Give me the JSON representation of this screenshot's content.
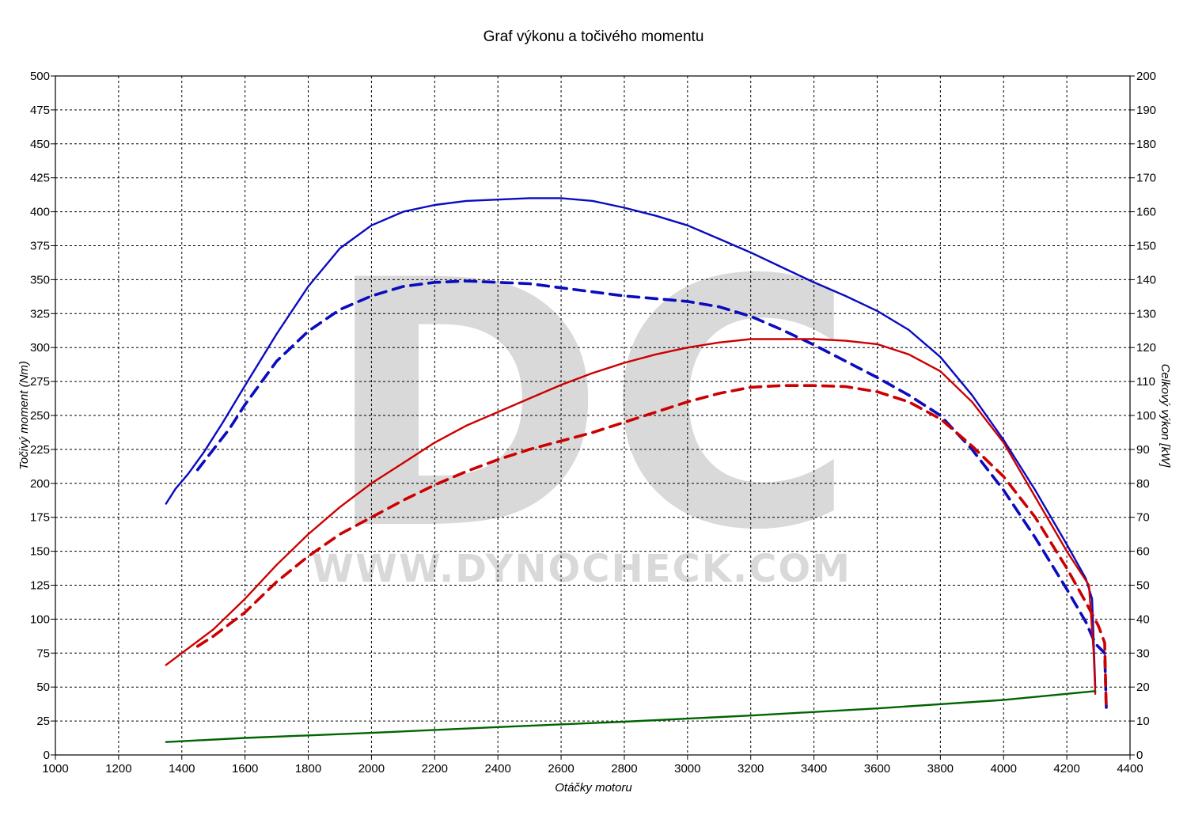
{
  "chart_data": {
    "type": "line",
    "title": "Graf výkonu a točivého momentu",
    "xlabel": "Otáčky motoru",
    "ylabel_left": "Točivý moment (Nm)",
    "ylabel_right": "Celkový výkon [kW]",
    "xlim": [
      1000,
      4400
    ],
    "x_ticks": [
      1000,
      1200,
      1400,
      1600,
      1800,
      2000,
      2200,
      2400,
      2600,
      2800,
      3000,
      3200,
      3400,
      3600,
      3800,
      4000,
      4200,
      4400
    ],
    "ylim_left": [
      0,
      500
    ],
    "left_ticks": [
      0,
      25,
      50,
      75,
      100,
      125,
      150,
      175,
      200,
      225,
      250,
      275,
      300,
      325,
      350,
      375,
      400,
      425,
      450,
      475,
      500
    ],
    "ylim_right": [
      0,
      200
    ],
    "right_ticks": [
      0,
      10,
      20,
      30,
      40,
      50,
      60,
      70,
      80,
      90,
      100,
      110,
      120,
      130,
      140,
      150,
      160,
      170,
      180,
      190,
      200
    ],
    "grid": true,
    "watermark": {
      "logo": "DC",
      "url": "WWW.DYNOCHECK.COM"
    },
    "colors": {
      "torque": "#0b0bbf",
      "power": "#cc0000",
      "loss": "#006400",
      "grid": "#000000"
    },
    "series": [
      {
        "axis": "left",
        "color": "#0b0bbf",
        "style": "solid",
        "points": [
          [
            1350,
            185
          ],
          [
            1380,
            196
          ],
          [
            1420,
            207
          ],
          [
            1470,
            223
          ],
          [
            1530,
            245
          ],
          [
            1600,
            272
          ],
          [
            1700,
            310
          ],
          [
            1800,
            345
          ],
          [
            1900,
            373
          ],
          [
            2000,
            390
          ],
          [
            2100,
            400
          ],
          [
            2200,
            405
          ],
          [
            2300,
            408
          ],
          [
            2400,
            409
          ],
          [
            2500,
            410
          ],
          [
            2600,
            410
          ],
          [
            2700,
            408
          ],
          [
            2800,
            403
          ],
          [
            2900,
            397
          ],
          [
            3000,
            390
          ],
          [
            3100,
            380
          ],
          [
            3200,
            370
          ],
          [
            3300,
            359
          ],
          [
            3400,
            348
          ],
          [
            3500,
            338
          ],
          [
            3600,
            327
          ],
          [
            3700,
            313
          ],
          [
            3800,
            293
          ],
          [
            3900,
            265
          ],
          [
            4000,
            232
          ],
          [
            4100,
            195
          ],
          [
            4200,
            155
          ],
          [
            4260,
            130
          ],
          [
            4280,
            115
          ],
          [
            4290,
            50
          ]
        ]
      },
      {
        "axis": "left",
        "color": "#0b0bbf",
        "style": "dashed",
        "points": [
          [
            1450,
            210
          ],
          [
            1500,
            225
          ],
          [
            1550,
            240
          ],
          [
            1600,
            258
          ],
          [
            1700,
            290
          ],
          [
            1800,
            312
          ],
          [
            1900,
            328
          ],
          [
            2000,
            338
          ],
          [
            2100,
            345
          ],
          [
            2200,
            348
          ],
          [
            2300,
            349
          ],
          [
            2400,
            348
          ],
          [
            2500,
            347
          ],
          [
            2600,
            344
          ],
          [
            2700,
            341
          ],
          [
            2800,
            338
          ],
          [
            2900,
            336
          ],
          [
            3000,
            334
          ],
          [
            3100,
            330
          ],
          [
            3200,
            323
          ],
          [
            3300,
            313
          ],
          [
            3400,
            302
          ],
          [
            3500,
            290
          ],
          [
            3600,
            278
          ],
          [
            3700,
            265
          ],
          [
            3800,
            250
          ],
          [
            3900,
            225
          ],
          [
            4000,
            195
          ],
          [
            4100,
            160
          ],
          [
            4200,
            122
          ],
          [
            4260,
            98
          ],
          [
            4290,
            82
          ],
          [
            4320,
            75
          ],
          [
            4325,
            35
          ]
        ]
      },
      {
        "axis": "right",
        "color": "#cc0000",
        "style": "solid",
        "points": [
          [
            1350,
            26.5
          ],
          [
            1400,
            30
          ],
          [
            1500,
            37
          ],
          [
            1600,
            46
          ],
          [
            1700,
            56
          ],
          [
            1800,
            65
          ],
          [
            1900,
            73
          ],
          [
            2000,
            80
          ],
          [
            2100,
            86
          ],
          [
            2200,
            92
          ],
          [
            2300,
            97
          ],
          [
            2400,
            101
          ],
          [
            2500,
            105
          ],
          [
            2600,
            109
          ],
          [
            2700,
            112.5
          ],
          [
            2800,
            115.5
          ],
          [
            2900,
            118
          ],
          [
            3000,
            120
          ],
          [
            3100,
            121.5
          ],
          [
            3200,
            122.5
          ],
          [
            3300,
            122.5
          ],
          [
            3400,
            122.5
          ],
          [
            3500,
            122
          ],
          [
            3600,
            121
          ],
          [
            3700,
            118
          ],
          [
            3800,
            113
          ],
          [
            3900,
            104
          ],
          [
            4000,
            92
          ],
          [
            4100,
            76
          ],
          [
            4200,
            60
          ],
          [
            4270,
            50
          ],
          [
            4285,
            30
          ],
          [
            4290,
            18
          ]
        ]
      },
      {
        "axis": "right",
        "color": "#cc0000",
        "style": "dashed",
        "points": [
          [
            1450,
            32
          ],
          [
            1500,
            35
          ],
          [
            1600,
            42
          ],
          [
            1700,
            51
          ],
          [
            1800,
            58.5
          ],
          [
            1900,
            65
          ],
          [
            2000,
            70
          ],
          [
            2100,
            75
          ],
          [
            2200,
            79.5
          ],
          [
            2300,
            83.5
          ],
          [
            2400,
            87
          ],
          [
            2500,
            90
          ],
          [
            2600,
            92.5
          ],
          [
            2700,
            95
          ],
          [
            2800,
            98
          ],
          [
            2900,
            101
          ],
          [
            3000,
            104
          ],
          [
            3100,
            106.5
          ],
          [
            3200,
            108.3
          ],
          [
            3300,
            108.8
          ],
          [
            3400,
            108.8
          ],
          [
            3500,
            108.5
          ],
          [
            3600,
            107
          ],
          [
            3700,
            104
          ],
          [
            3800,
            99
          ],
          [
            3900,
            91
          ],
          [
            4000,
            82
          ],
          [
            4100,
            70
          ],
          [
            4200,
            55
          ],
          [
            4260,
            45
          ],
          [
            4300,
            38
          ],
          [
            4320,
            33
          ],
          [
            4325,
            13
          ]
        ]
      },
      {
        "axis": "right",
        "color": "#006400",
        "style": "solid",
        "points": [
          [
            1350,
            3.8
          ],
          [
            1600,
            5
          ],
          [
            2000,
            6.5
          ],
          [
            2400,
            8.2
          ],
          [
            2800,
            9.8
          ],
          [
            3200,
            11.6
          ],
          [
            3600,
            13.7
          ],
          [
            4000,
            16.2
          ],
          [
            4290,
            18.8
          ]
        ]
      }
    ]
  }
}
